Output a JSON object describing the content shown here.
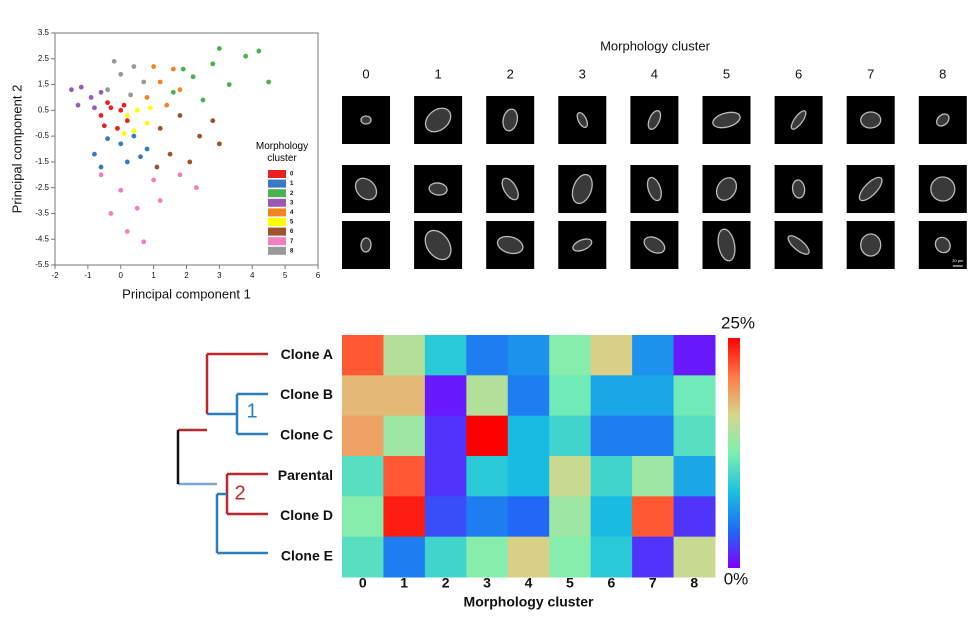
{
  "chart_data": [
    {
      "type": "scatter",
      "xlabel": "Principal component 1",
      "ylabel": "Principal component 2",
      "xlim": [
        -2,
        6
      ],
      "xticks": [
        -2,
        -1,
        0,
        1,
        2,
        3,
        4,
        5,
        6
      ],
      "ylim": [
        -5.5,
        3.5
      ],
      "yticks": [
        -5.5,
        -4.5,
        -3.5,
        -2.5,
        -1.5,
        -0.5,
        0.5,
        1.5,
        2.5,
        3.5
      ],
      "legend_title": "Morphology cluster",
      "legend": "right",
      "series": [
        {
          "name": "0",
          "color": "#e8201f",
          "x": [
            -0.6,
            -0.3,
            0,
            0.2,
            -0.5,
            -0.1,
            0.1,
            -0.4
          ],
          "y": [
            0.3,
            0.6,
            0.5,
            0.1,
            -0.1,
            -0.2,
            0.7,
            0.8
          ]
        },
        {
          "name": "1",
          "color": "#3b78c3",
          "x": [
            -0.8,
            -0.4,
            0,
            0.4,
            0.8,
            -0.6,
            0.2,
            0.6
          ],
          "y": [
            -1.2,
            -0.6,
            -0.8,
            -0.5,
            -1.0,
            -1.7,
            -1.5,
            -1.3
          ]
        },
        {
          "name": "2",
          "color": "#4cb050",
          "x": [
            1.6,
            2.2,
            2.8,
            3.3,
            3.8,
            4.2,
            2.5,
            3.0,
            4.5,
            1.9
          ],
          "y": [
            1.2,
            1.8,
            2.3,
            1.5,
            2.6,
            2.8,
            0.9,
            2.9,
            1.6,
            2.1
          ]
        },
        {
          "name": "3",
          "color": "#9b59b6",
          "x": [
            -1.5,
            -1.2,
            -0.9,
            -0.6,
            -1.3,
            -0.8
          ],
          "y": [
            1.3,
            1.4,
            1.0,
            1.2,
            0.7,
            0.6
          ]
        },
        {
          "name": "4",
          "color": "#f5841f",
          "x": [
            0.8,
            1.2,
            1.6,
            1.0,
            1.4,
            1.8
          ],
          "y": [
            1.0,
            1.6,
            2.1,
            2.2,
            0.7,
            1.3
          ]
        },
        {
          "name": "5",
          "color": "#ffff00",
          "x": [
            0.2,
            0.5,
            0.8,
            0.4,
            0.9,
            0.1
          ],
          "y": [
            0.3,
            0.5,
            0.0,
            -0.3,
            0.6,
            -0.4
          ]
        },
        {
          "name": "6",
          "color": "#a0522d",
          "x": [
            1.2,
            1.8,
            2.4,
            3.0,
            1.5,
            2.1,
            2.8,
            1.1
          ],
          "y": [
            -0.2,
            0.3,
            -0.5,
            -0.8,
            -1.2,
            -1.5,
            0.1,
            -1.7
          ]
        },
        {
          "name": "7",
          "color": "#f47fbf",
          "x": [
            -0.6,
            0,
            0.5,
            1.0,
            1.8,
            2.3,
            0.2,
            0.7,
            -0.3,
            1.2
          ],
          "y": [
            -2.0,
            -2.6,
            -3.3,
            -2.2,
            -2.0,
            -2.5,
            -4.2,
            -4.6,
            -3.5,
            -3.0
          ]
        },
        {
          "name": "8",
          "color": "#999999",
          "x": [
            -0.4,
            0,
            0.4,
            0.7,
            -0.2,
            0.3
          ],
          "y": [
            1.3,
            1.9,
            2.2,
            1.6,
            2.4,
            1.1
          ]
        }
      ]
    },
    {
      "type": "image-grid",
      "title": "Morphology cluster",
      "columns": [
        "0",
        "1",
        "2",
        "3",
        "4",
        "5",
        "6",
        "7",
        "8"
      ],
      "scale_bar": "20 µm"
    },
    {
      "type": "heatmap",
      "xlabel": "Morphology cluster",
      "x_categories": [
        "0",
        "1",
        "2",
        "3",
        "4",
        "5",
        "6",
        "7",
        "8"
      ],
      "y_categories": [
        "Clone A",
        "Clone B",
        "Clone C",
        "Parental",
        "Clone D",
        "Clone E"
      ],
      "values": [
        [
          22,
          15,
          9,
          5,
          6,
          13,
          17,
          6,
          1
        ],
        [
          18,
          18,
          1,
          15,
          5,
          12,
          7,
          7,
          12
        ],
        [
          19,
          14,
          2,
          25,
          8,
          10,
          5,
          5,
          11
        ],
        [
          11,
          22,
          2,
          9,
          8,
          16,
          10,
          14,
          7
        ],
        [
          13,
          24,
          3,
          5,
          4,
          14,
          8,
          22,
          2
        ],
        [
          11,
          5,
          10,
          13,
          17,
          13,
          9,
          2,
          16
        ]
      ],
      "zlim": [
        0,
        25
      ],
      "zticks": [
        {
          "value": 25,
          "label": "25%"
        },
        {
          "value": 0,
          "label": "0%"
        }
      ],
      "colors": [
        "#7f00ff",
        "#1e6cf5",
        "#19c2e0",
        "#7cf0b0",
        "#d6d68c",
        "#ff7a45",
        "#ff0000"
      ],
      "cluster_labels": [
        "1",
        "2"
      ]
    }
  ]
}
